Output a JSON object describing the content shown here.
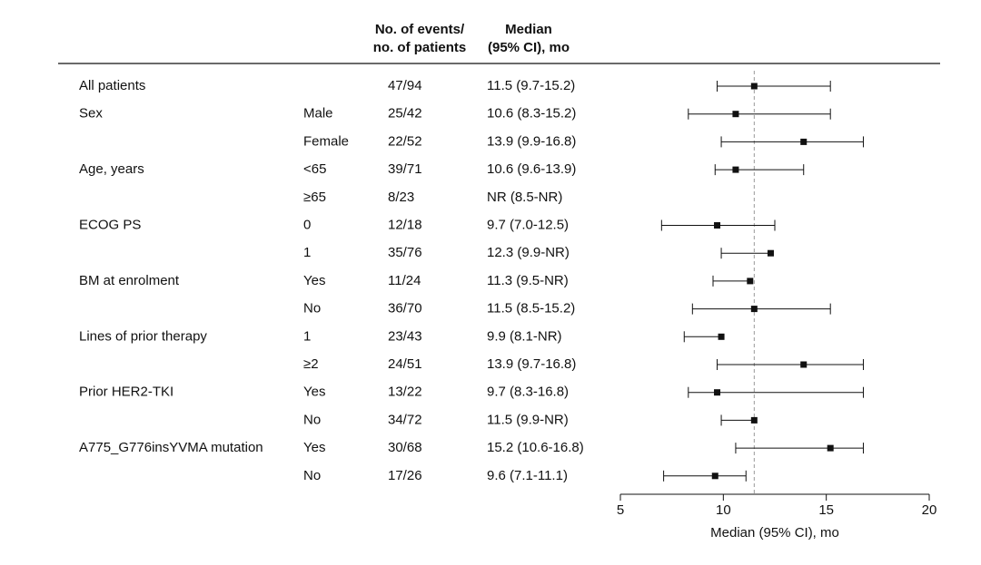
{
  "chart_data": {
    "type": "forest",
    "headers": {
      "events": [
        "No. of events/",
        "no. of patients"
      ],
      "median": [
        "Median",
        "(95% CI), mo"
      ]
    },
    "x_label": "Median (95% CI), mo",
    "xlim": [
      5,
      20
    ],
    "xticks": [
      5,
      10,
      15,
      20
    ],
    "ref_line": 11.5,
    "color": "#111111",
    "ref_color": "#999999",
    "rows": [
      {
        "label": "All patients",
        "subgroup": null,
        "events": "47/94",
        "median_label": "11.5 (9.7-15.2)",
        "median": 11.5,
        "lo": 9.7,
        "hi": 15.2
      },
      {
        "label": "Sex",
        "subgroup": "Male",
        "events": "25/42",
        "median_label": "10.6 (8.3-15.2)",
        "median": 10.6,
        "lo": 8.3,
        "hi": 15.2
      },
      {
        "label": null,
        "subgroup": "Female",
        "events": "22/52",
        "median_label": "13.9 (9.9-16.8)",
        "median": 13.9,
        "lo": 9.9,
        "hi": 16.8
      },
      {
        "label": "Age, years",
        "subgroup": "<65",
        "events": "39/71",
        "median_label": "10.6 (9.6-13.9)",
        "median": 10.6,
        "lo": 9.6,
        "hi": 13.9
      },
      {
        "label": null,
        "subgroup": "≥65",
        "events": "8/23",
        "median_label": "NR (8.5-NR)",
        "median": null,
        "lo": null,
        "hi": null
      },
      {
        "label": "ECOG PS",
        "subgroup": "0",
        "events": "12/18",
        "median_label": "9.7 (7.0-12.5)",
        "median": 9.7,
        "lo": 7.0,
        "hi": 12.5
      },
      {
        "label": null,
        "subgroup": "1",
        "events": "35/76",
        "median_label": "12.3 (9.9-NR)",
        "median": 12.3,
        "lo": 9.9,
        "hi": null
      },
      {
        "label": "BM at enrolment",
        "subgroup": "Yes",
        "events": "11/24",
        "median_label": "11.3 (9.5-NR)",
        "median": 11.3,
        "lo": 9.5,
        "hi": null
      },
      {
        "label": null,
        "subgroup": "No",
        "events": "36/70",
        "median_label": "11.5 (8.5-15.2)",
        "median": 11.5,
        "lo": 8.5,
        "hi": 15.2
      },
      {
        "label": "Lines of prior therapy",
        "subgroup": "1",
        "events": "23/43",
        "median_label": "9.9 (8.1-NR)",
        "median": 9.9,
        "lo": 8.1,
        "hi": null
      },
      {
        "label": null,
        "subgroup": "≥2",
        "events": "24/51",
        "median_label": "13.9 (9.7-16.8)",
        "median": 13.9,
        "lo": 9.7,
        "hi": 16.8
      },
      {
        "label": "Prior HER2-TKI",
        "subgroup": "Yes",
        "events": "13/22",
        "median_label": "9.7 (8.3-16.8)",
        "median": 9.7,
        "lo": 8.3,
        "hi": 16.8
      },
      {
        "label": null,
        "subgroup": "No",
        "events": "34/72",
        "median_label": "11.5 (9.9-NR)",
        "median": 11.5,
        "lo": 9.9,
        "hi": null
      },
      {
        "label": "A775_G776insYVMA mutation",
        "subgroup": "Yes",
        "events": "30/68",
        "median_label": "15.2 (10.6-16.8)",
        "median": 15.2,
        "lo": 10.6,
        "hi": 16.8
      },
      {
        "label": null,
        "subgroup": "No",
        "events": "17/26",
        "median_label": "9.6 (7.1-11.1)",
        "median": 9.6,
        "lo": 7.1,
        "hi": 11.1
      }
    ]
  }
}
